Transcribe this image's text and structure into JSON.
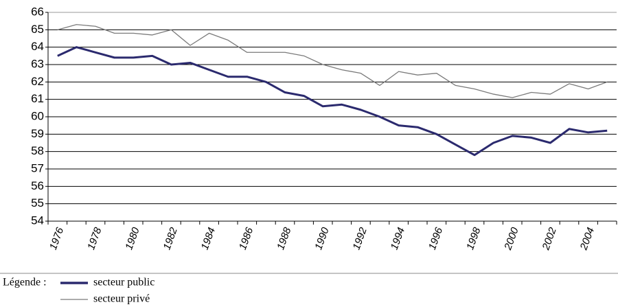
{
  "chart_data": {
    "type": "line",
    "categories": [
      "1976",
      null,
      "1978",
      null,
      "1980",
      null,
      "1982",
      null,
      "1984",
      null,
      "1986",
      null,
      "1988",
      null,
      "1990",
      null,
      "1992",
      null,
      "1994",
      null,
      "1996",
      null,
      "1998",
      null,
      "2000",
      null,
      "2002",
      null,
      "2004",
      null
    ],
    "series": [
      {
        "name": "secteur public",
        "color": "#2b2a6e",
        "values": [
          63.5,
          64.0,
          63.7,
          63.4,
          63.4,
          63.5,
          63.0,
          63.1,
          62.7,
          62.3,
          62.3,
          62.0,
          61.4,
          61.2,
          60.6,
          60.7,
          60.4,
          60.0,
          59.5,
          59.4,
          59.0,
          58.4,
          57.8,
          58.5,
          58.9,
          58.8,
          58.5,
          59.3,
          59.1,
          59.2
        ]
      },
      {
        "name": "secteur privé",
        "color": "#7a7a7a",
        "values": [
          65.0,
          65.3,
          65.2,
          64.8,
          64.8,
          64.7,
          65.0,
          64.1,
          64.8,
          64.4,
          63.7,
          63.7,
          63.7,
          63.5,
          63.0,
          62.7,
          62.5,
          61.8,
          62.6,
          62.4,
          62.5,
          61.8,
          61.6,
          61.3,
          61.1,
          61.4,
          61.3,
          61.9,
          61.6,
          62.0
        ]
      }
    ],
    "ylim": [
      54,
      66
    ],
    "yticks": [
      54,
      55,
      56,
      57,
      58,
      59,
      60,
      61,
      62,
      63,
      64,
      65,
      66
    ],
    "grid": true,
    "legend_title": "Légende :"
  }
}
